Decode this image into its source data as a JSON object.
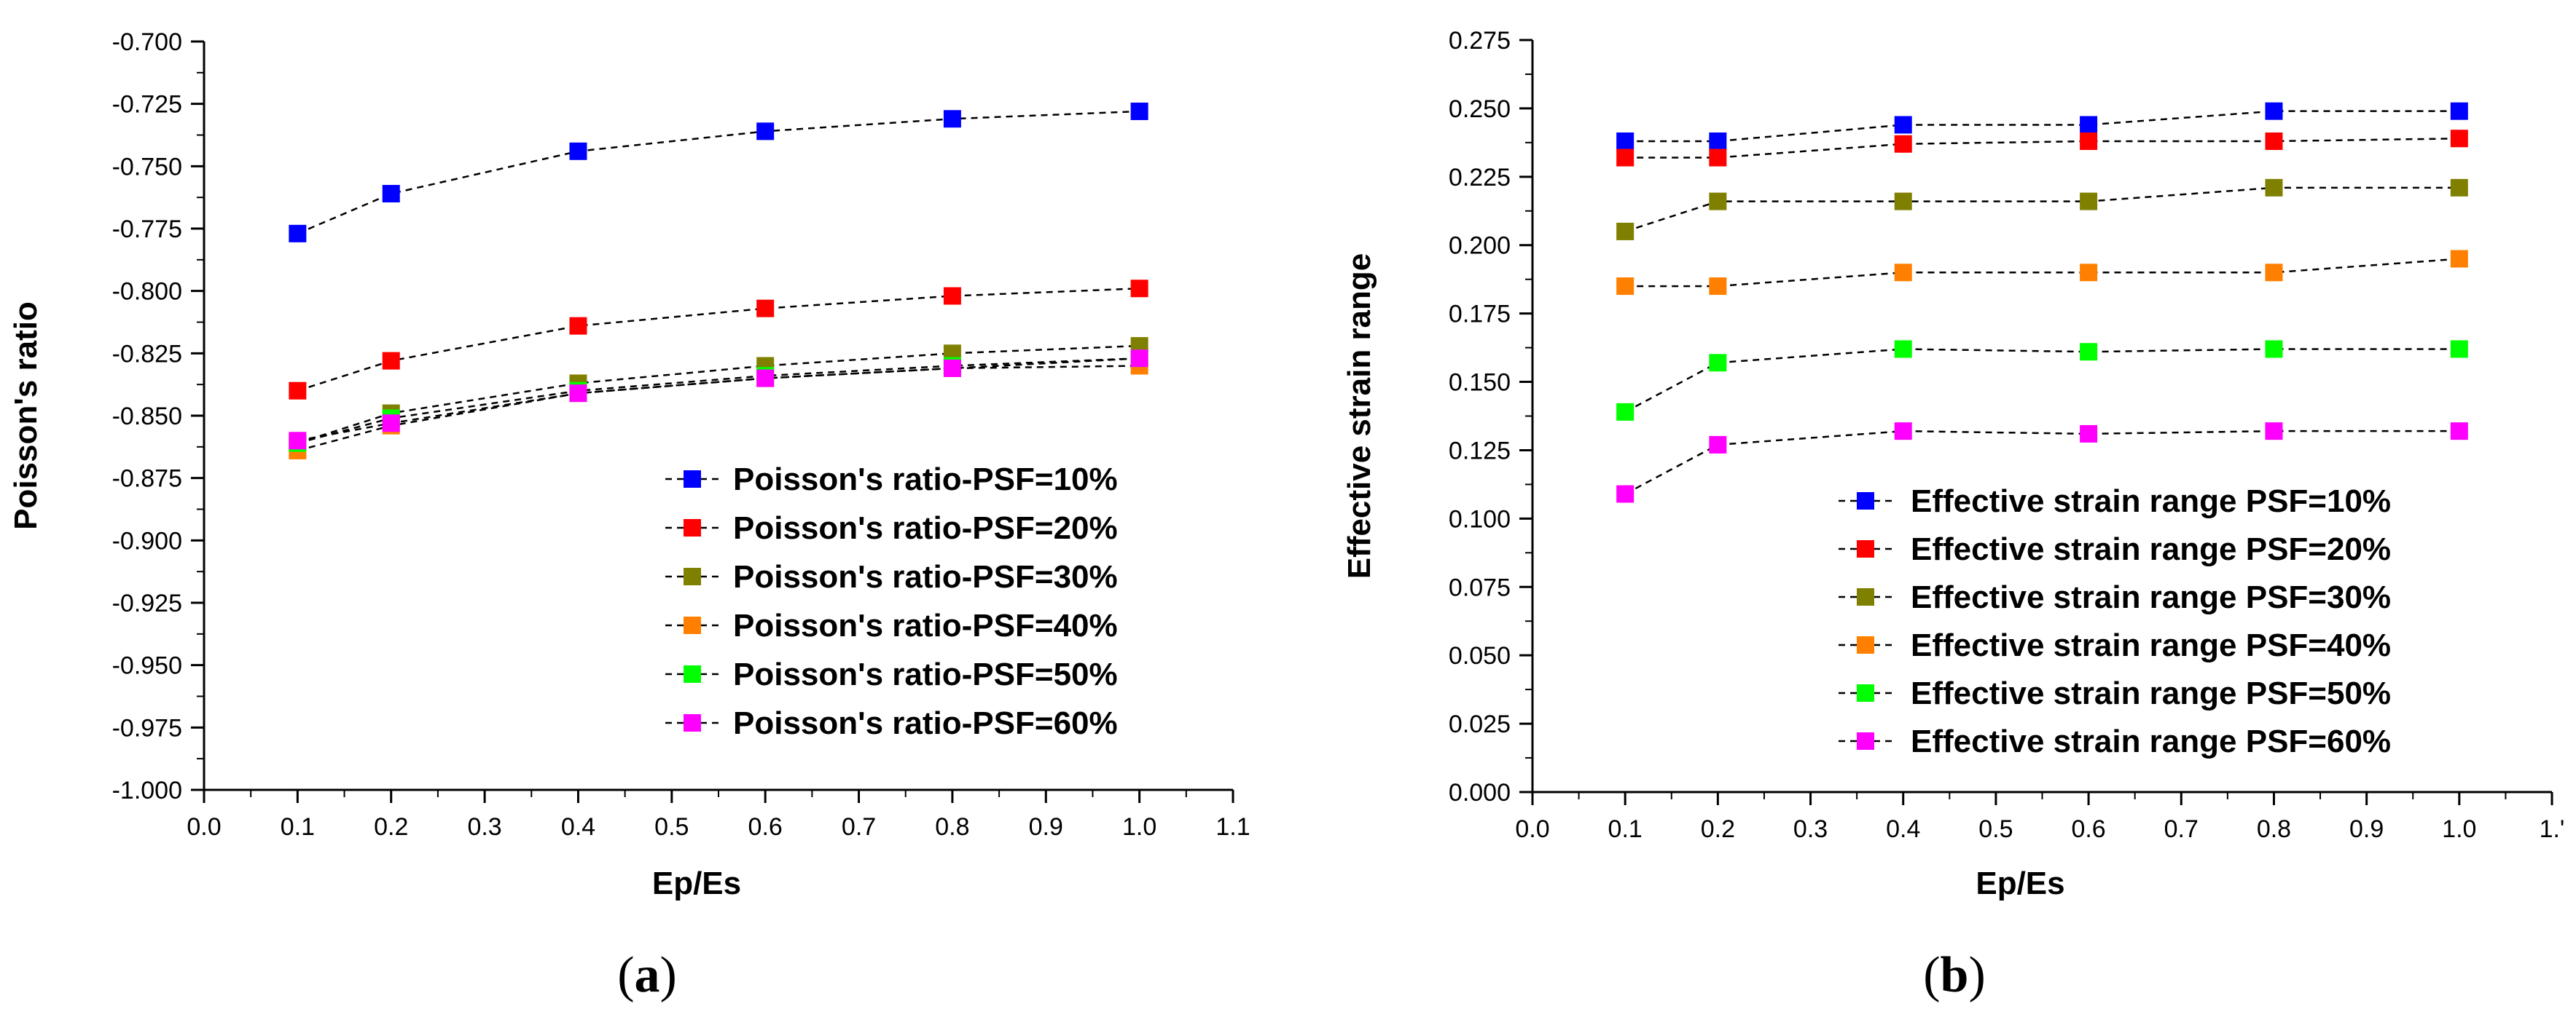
{
  "chart_data": [
    {
      "panel": "a",
      "panel_label": "(a)",
      "type": "line",
      "marker": "square",
      "line_style": "dashed",
      "xlabel": "Ep/Es",
      "ylabel": "Poisson's ratio",
      "xlim": [
        0.0,
        1.1
      ],
      "ylim": [
        -1.0,
        -0.7
      ],
      "xticks": [
        0.0,
        0.1,
        0.2,
        0.3,
        0.4,
        0.5,
        0.6,
        0.7,
        0.8,
        0.9,
        1.0,
        1.1
      ],
      "xtick_labels": [
        "0.0",
        "0.1",
        "0.2",
        "0.3",
        "0.4",
        "0.5",
        "0.6",
        "0.7",
        "0.8",
        "0.9",
        "1.0",
        "1.1"
      ],
      "yticks": [
        -1.0,
        -0.975,
        -0.95,
        -0.925,
        -0.9,
        -0.875,
        -0.85,
        -0.825,
        -0.8,
        -0.775,
        -0.75,
        -0.725,
        -0.7
      ],
      "ytick_labels": [
        "-1.000",
        "-0.975",
        "-0.950",
        "-0.925",
        "-0.900",
        "-0.875",
        "-0.850",
        "-0.825",
        "-0.800",
        "-0.775",
        "-0.750",
        "-0.725",
        "-0.700"
      ],
      "legend_position": "bottom-right",
      "x": [
        0.1,
        0.2,
        0.4,
        0.6,
        0.8,
        1.0
      ],
      "series": [
        {
          "name": "Poisson's ratio-PSF=10%",
          "color": "#0000ff",
          "values": [
            -0.777,
            -0.761,
            -0.744,
            -0.736,
            -0.731,
            -0.728
          ]
        },
        {
          "name": "Poisson's ratio-PSF=20%",
          "color": "#ff0000",
          "values": [
            -0.84,
            -0.828,
            -0.814,
            -0.807,
            -0.802,
            -0.799
          ]
        },
        {
          "name": "Poisson's ratio-PSF=30%",
          "color": "#808000",
          "values": [
            -0.861,
            -0.849,
            -0.837,
            -0.83,
            -0.825,
            -0.822
          ]
        },
        {
          "name": "Poisson's ratio-PSF=40%",
          "color": "#ff8000",
          "values": [
            -0.864,
            -0.854,
            -0.841,
            -0.835,
            -0.831,
            -0.83
          ]
        },
        {
          "name": "Poisson's ratio-PSF=50%",
          "color": "#00ff00",
          "values": [
            -0.861,
            -0.851,
            -0.84,
            -0.834,
            -0.83,
            -0.827
          ]
        },
        {
          "name": "Poisson's ratio-PSF=60%",
          "color": "#ff00ff",
          "values": [
            -0.86,
            -0.853,
            -0.841,
            -0.835,
            -0.831,
            -0.827
          ]
        }
      ]
    },
    {
      "panel": "b",
      "panel_label": "(b)",
      "type": "line",
      "marker": "square",
      "line_style": "dashed",
      "xlabel": "Ep/Es",
      "ylabel": "Effective strain range",
      "xlim": [
        0.0,
        1.1
      ],
      "ylim": [
        0.0,
        0.275
      ],
      "xticks": [
        0.0,
        0.1,
        0.2,
        0.3,
        0.4,
        0.5,
        0.6,
        0.7,
        0.8,
        0.9,
        1.0,
        1.1
      ],
      "xtick_labels": [
        "0.0",
        "0.1",
        "0.2",
        "0.3",
        "0.4",
        "0.5",
        "0.6",
        "0.7",
        "0.8",
        "0.9",
        "1.0",
        "1.'"
      ],
      "yticks": [
        0.0,
        0.025,
        0.05,
        0.075,
        0.1,
        0.125,
        0.15,
        0.175,
        0.2,
        0.225,
        0.25,
        0.275
      ],
      "ytick_labels": [
        "0.000",
        "0.025",
        "0.050",
        "0.075",
        "0.100",
        "0.125",
        "0.150",
        "0.175",
        "0.200",
        "0.225",
        "0.250",
        "0.275"
      ],
      "legend_position": "bottom-right",
      "x": [
        0.1,
        0.2,
        0.4,
        0.6,
        0.8,
        1.0
      ],
      "series": [
        {
          "name": "Effective strain range PSF=10%",
          "color": "#0000ff",
          "values": [
            0.238,
            0.238,
            0.244,
            0.244,
            0.249,
            0.249
          ]
        },
        {
          "name": "Effective strain range PSF=20%",
          "color": "#ff0000",
          "values": [
            0.232,
            0.232,
            0.237,
            0.238,
            0.238,
            0.239
          ]
        },
        {
          "name": "Effective strain range PSF=30%",
          "color": "#808000",
          "values": [
            0.205,
            0.216,
            0.216,
            0.216,
            0.221,
            0.221
          ]
        },
        {
          "name": "Effective strain range PSF=40%",
          "color": "#ff8000",
          "values": [
            0.185,
            0.185,
            0.19,
            0.19,
            0.19,
            0.195
          ]
        },
        {
          "name": "Effective strain range PSF=50%",
          "color": "#00ff00",
          "values": [
            0.139,
            0.157,
            0.162,
            0.161,
            0.162,
            0.162
          ]
        },
        {
          "name": "Effective strain range PSF=60%",
          "color": "#ff00ff",
          "values": [
            0.109,
            0.127,
            0.132,
            0.131,
            0.132,
            0.132
          ]
        }
      ]
    }
  ]
}
